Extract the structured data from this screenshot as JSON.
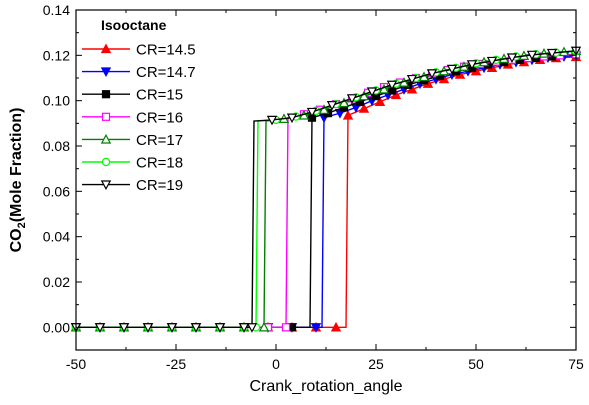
{
  "chart_data": {
    "type": "line",
    "title": "",
    "xlabel": "Crank_rotation_angle",
    "ylabel": "CO2(Mole Fraction)",
    "ylabel_main": "CO",
    "ylabel_sub": "2",
    "ylabel_rest": "(Mole Fraction)",
    "xlim": [
      -50,
      75
    ],
    "ylim": [
      -0.01,
      0.14
    ],
    "xticks": [
      -50,
      -25,
      0,
      25,
      50,
      75
    ],
    "xtick_labels": [
      "-50",
      "-25",
      "0",
      "25",
      "50",
      "75"
    ],
    "yticks": [
      0.0,
      0.02,
      0.04,
      0.06,
      0.08,
      0.1,
      0.12,
      0.14
    ],
    "ytick_labels": [
      "0.00",
      "0.02",
      "0.04",
      "0.06",
      "0.08",
      "0.10",
      "0.12",
      "0.14"
    ],
    "grid": false,
    "legend_title": "Isooctane",
    "legend_position": "top-left",
    "series": [
      {
        "name": "CR=14.5",
        "color": "#ff0000",
        "marker": "triangle-up",
        "filled": true,
        "jump": 17.5,
        "x": [
          -50,
          -44,
          -38,
          -32,
          -26,
          -20,
          -14,
          -8,
          -2,
          4,
          10,
          15,
          17.5,
          18,
          22,
          26,
          30,
          34,
          38,
          42,
          46,
          50,
          54,
          58,
          62,
          66,
          70,
          75
        ],
        "y": [
          0,
          0,
          0,
          0,
          0,
          0,
          0,
          0,
          0,
          0,
          0,
          0,
          0,
          0.0935,
          0.0965,
          0.0995,
          0.1025,
          0.105,
          0.1075,
          0.1095,
          0.1115,
          0.113,
          0.1145,
          0.116,
          0.117,
          0.118,
          0.1188,
          0.1193
        ]
      },
      {
        "name": "CR=14.7",
        "color": "#0000ff",
        "marker": "triangle-down",
        "filled": true,
        "jump": 11.5,
        "x": [
          -50,
          -44,
          -38,
          -32,
          -26,
          -20,
          -14,
          -8,
          -2,
          4,
          10,
          11.5,
          12,
          16,
          20,
          24,
          28,
          32,
          36,
          40,
          44,
          48,
          52,
          56,
          60,
          64,
          68,
          72,
          75
        ],
        "y": [
          0,
          0,
          0,
          0,
          0,
          0,
          0,
          0,
          0,
          0,
          0,
          0,
          0.0925,
          0.0945,
          0.097,
          0.1,
          0.1025,
          0.105,
          0.1075,
          0.1095,
          0.1115,
          0.113,
          0.1145,
          0.116,
          0.117,
          0.118,
          0.119,
          0.1195,
          0.1198
        ]
      },
      {
        "name": "CR=15",
        "color": "#000000",
        "marker": "square",
        "filled": true,
        "jump": 8.5,
        "x": [
          -50,
          -44,
          -38,
          -32,
          -26,
          -20,
          -14,
          -8,
          -2,
          4,
          8.5,
          9,
          13,
          17,
          21,
          25,
          29,
          33,
          37,
          41,
          45,
          49,
          53,
          57,
          61,
          65,
          69,
          75
        ],
        "y": [
          0,
          0,
          0,
          0,
          0,
          0,
          0,
          0,
          0,
          0,
          0,
          0.0925,
          0.0945,
          0.097,
          0.0995,
          0.102,
          0.1045,
          0.107,
          0.109,
          0.111,
          0.113,
          0.1145,
          0.116,
          0.117,
          0.118,
          0.1188,
          0.1195,
          0.1205
        ]
      },
      {
        "name": "CR=16",
        "color": "#ff00ff",
        "marker": "square",
        "filled": false,
        "jump": 3,
        "x": [
          -50,
          -44,
          -38,
          -32,
          -26,
          -20,
          -14,
          -8,
          -2,
          2.5,
          3,
          7,
          11,
          15,
          19,
          23,
          27,
          31,
          35,
          39,
          43,
          47,
          51,
          55,
          59,
          63,
          67,
          71,
          75
        ],
        "y": [
          0,
          0,
          0,
          0,
          0,
          0,
          0,
          0,
          0,
          0,
          0.0925,
          0.094,
          0.096,
          0.0985,
          0.101,
          0.1035,
          0.106,
          0.108,
          0.11,
          0.112,
          0.1135,
          0.115,
          0.1162,
          0.1172,
          0.118,
          0.1188,
          0.1195,
          0.12,
          0.1205
        ]
      },
      {
        "name": "CR=17",
        "color": "#008000",
        "marker": "triangle-up",
        "filled": false,
        "jump": -2.5,
        "x": [
          -50,
          -44,
          -38,
          -32,
          -26,
          -20,
          -14,
          -8,
          -3,
          -2.5,
          2,
          7,
          12,
          17,
          22,
          27,
          32,
          37,
          42,
          47,
          52,
          57,
          62,
          67,
          72,
          75
        ],
        "y": [
          0,
          0,
          0,
          0,
          0,
          0,
          0,
          0,
          0,
          0.091,
          0.092,
          0.0935,
          0.096,
          0.099,
          0.102,
          0.105,
          0.108,
          0.1105,
          0.113,
          0.115,
          0.117,
          0.1185,
          0.1198,
          0.1208,
          0.1215,
          0.122
        ]
      },
      {
        "name": "CR=18",
        "color": "#00ff00",
        "marker": "circle",
        "filled": false,
        "jump": -4.5,
        "x": [
          -50,
          -44,
          -38,
          -32,
          -26,
          -20,
          -14,
          -8,
          -5,
          -4.5,
          0,
          5,
          10,
          15,
          20,
          25,
          30,
          35,
          40,
          45,
          50,
          55,
          60,
          65,
          70,
          75
        ],
        "y": [
          0,
          0,
          0,
          0,
          0,
          0,
          0,
          0,
          0,
          0.091,
          0.0915,
          0.093,
          0.0955,
          0.0985,
          0.1015,
          0.1045,
          0.1075,
          0.11,
          0.1125,
          0.1145,
          0.1165,
          0.118,
          0.1195,
          0.1205,
          0.1212,
          0.1218
        ]
      },
      {
        "name": "CR=19",
        "color": "#000000",
        "marker": "triangle-down",
        "filled": false,
        "jump": -5.5,
        "x": [
          -50,
          -44,
          -38,
          -32,
          -26,
          -20,
          -14,
          -8,
          -6,
          -5.5,
          -1,
          4,
          9,
          14,
          19,
          24,
          29,
          34,
          39,
          44,
          49,
          54,
          59,
          64,
          69,
          75
        ],
        "y": [
          0,
          0,
          0,
          0,
          0,
          0,
          0,
          0,
          0,
          0.091,
          0.0915,
          0.0925,
          0.095,
          0.098,
          0.101,
          0.104,
          0.107,
          0.1095,
          0.112,
          0.114,
          0.116,
          0.1175,
          0.119,
          0.1202,
          0.121,
          0.122
        ]
      }
    ]
  }
}
